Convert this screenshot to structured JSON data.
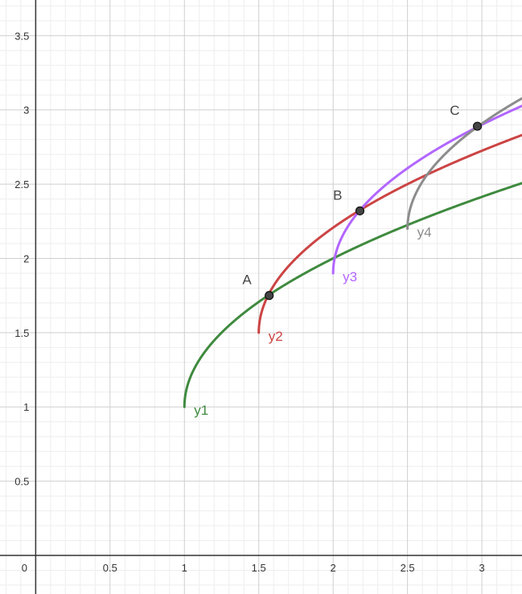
{
  "chart_data": {
    "type": "line",
    "title": "",
    "xlabel": "",
    "ylabel": "",
    "xlim": [
      -0.24,
      3.27
    ],
    "ylim": [
      -0.26,
      3.74
    ],
    "grid": true,
    "minor_grid": true,
    "x_ticks": [
      0.5,
      1,
      1.5,
      2,
      2.5,
      3
    ],
    "x_tick_labels": [
      "0.5",
      "1",
      "1.5",
      "2",
      "2.5",
      "3"
    ],
    "y_ticks": [
      0.5,
      1,
      1.5,
      2,
      2.5,
      3,
      3.5
    ],
    "y_tick_labels": [
      "0.5",
      "1",
      "1.5",
      "2",
      "2.5",
      "3",
      "3.5"
    ],
    "origin_label": "0",
    "series": [
      {
        "name": "y1",
        "color": "#3f8a3f",
        "x0": 1.0,
        "y0": 1.0,
        "k": 1.0,
        "x": [
          1.0,
          1.05,
          1.1,
          1.2,
          1.3,
          1.4,
          1.5,
          1.57,
          1.8,
          2.0,
          2.2,
          2.5,
          2.8,
          3.0,
          3.27
        ],
        "y": [
          1.0,
          1.22,
          1.32,
          1.45,
          1.55,
          1.63,
          1.71,
          1.75,
          1.89,
          2.0,
          2.1,
          2.22,
          2.34,
          2.41,
          2.51
        ]
      },
      {
        "name": "y2",
        "color": "#cc4444",
        "x0": 1.5,
        "y0": 1.5,
        "k": 1.0,
        "x": [
          1.5,
          1.52,
          1.57,
          1.7,
          1.9,
          2.18,
          2.4,
          2.7,
          3.0,
          3.27
        ],
        "y": [
          1.5,
          1.64,
          1.76,
          1.95,
          2.13,
          2.32,
          2.45,
          2.6,
          2.72,
          2.83
        ]
      },
      {
        "name": "y3",
        "color": "#b266ff",
        "x0": 2.0,
        "y0": 1.9,
        "k": 1.0,
        "x": [
          2.0,
          2.02,
          2.1,
          2.18,
          2.4,
          2.7,
          2.97,
          3.27
        ],
        "y": [
          1.9,
          2.04,
          2.22,
          2.32,
          2.53,
          2.73,
          2.89,
          3.03
        ]
      },
      {
        "name": "y4",
        "color": "#8c8c8c",
        "x0": 2.5,
        "y0": 2.2,
        "k": 1.0,
        "x": [
          2.5,
          2.52,
          2.6,
          2.75,
          2.97,
          3.1,
          3.27
        ],
        "y": [
          2.2,
          2.34,
          2.52,
          2.7,
          2.89,
          2.97,
          3.08
        ]
      }
    ],
    "points": [
      {
        "label": "A",
        "x": 1.57,
        "y": 1.75
      },
      {
        "label": "B",
        "x": 2.18,
        "y": 2.32
      },
      {
        "label": "C",
        "x": 2.97,
        "y": 2.89
      }
    ]
  }
}
